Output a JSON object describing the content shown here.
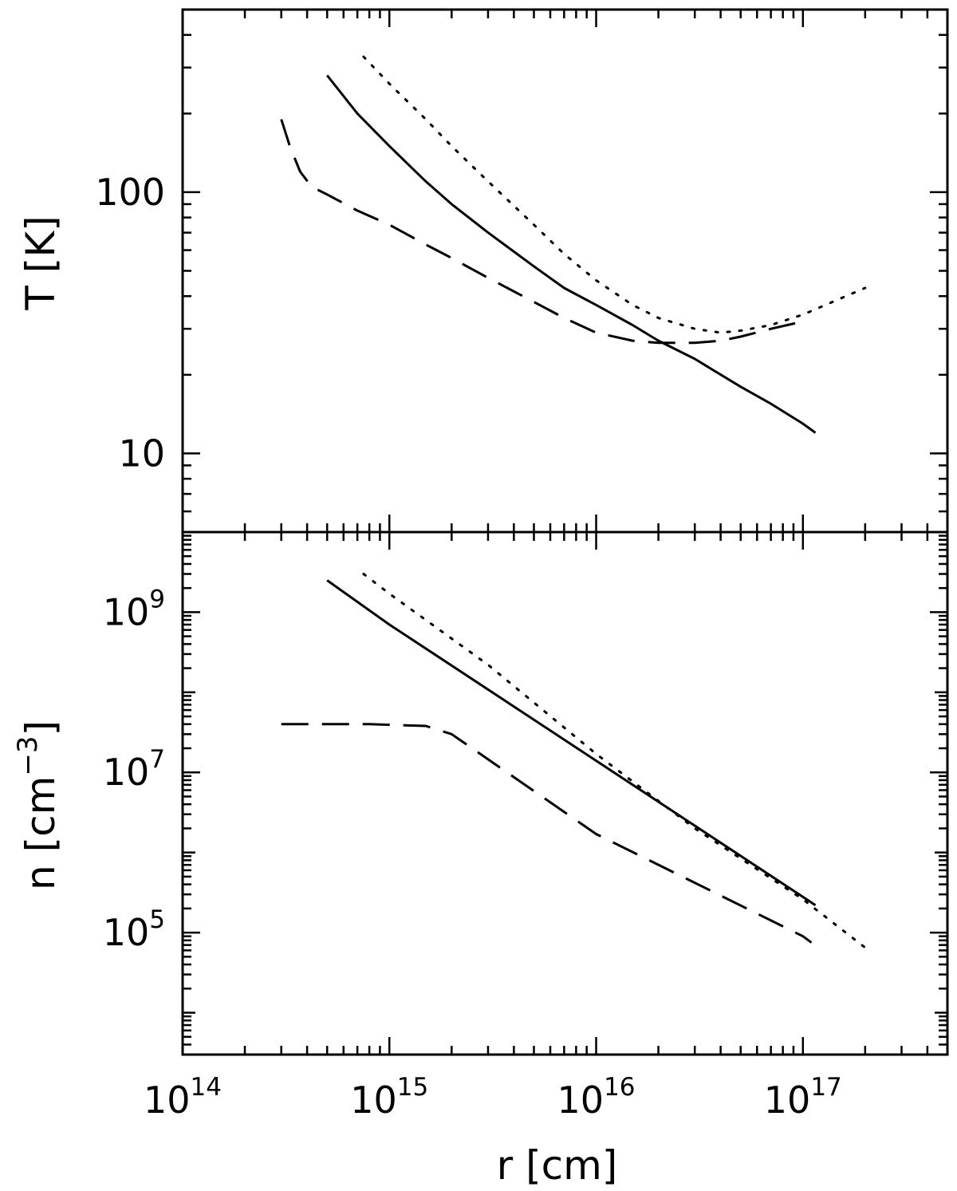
{
  "chart_data": [
    {
      "type": "line",
      "panel": "top",
      "xscale": "log",
      "yscale": "log",
      "xlim": [
        100000000000000.0,
        5e+17
      ],
      "ylim": [
        5,
        500
      ],
      "ylabel": "T [K]",
      "xlabel": "",
      "grid": false,
      "legend": "none",
      "yticks": [
        {
          "value": 10,
          "label": "10"
        },
        {
          "value": 100,
          "label": "100"
        }
      ],
      "series": [
        {
          "style": "solid",
          "points": [
            [
              500000000000000.0,
              280
            ],
            [
              700000000000000.0,
              200
            ],
            [
              1000000000000000.0,
              150
            ],
            [
              1500000000000000.0,
              110
            ],
            [
              2000000000000000.0,
              90
            ],
            [
              3000000000000000.0,
              70
            ],
            [
              5000000000000000.0,
              52
            ],
            [
              7000000000000000.0,
              43
            ],
            [
              1e+16,
              37
            ],
            [
              1.5e+16,
              31
            ],
            [
              2e+16,
              27
            ],
            [
              3e+16,
              23
            ],
            [
              5e+16,
              18
            ],
            [
              7e+16,
              15.5
            ],
            [
              1e+17,
              13
            ],
            [
              1.15e+17,
              12
            ]
          ]
        },
        {
          "style": "dotted",
          "points": [
            [
              750000000000000.0,
              330
            ],
            [
              1000000000000000.0,
              260
            ],
            [
              1500000000000000.0,
              190
            ],
            [
              2000000000000000.0,
              150
            ],
            [
              3000000000000000.0,
              110
            ],
            [
              5000000000000000.0,
              75
            ],
            [
              7000000000000000.0,
              58
            ],
            [
              1e+16,
              46
            ],
            [
              1.5e+16,
              37
            ],
            [
              2e+16,
              33
            ],
            [
              3e+16,
              30
            ],
            [
              4e+16,
              29
            ],
            [
              5e+16,
              29.5
            ],
            [
              7e+16,
              31
            ],
            [
              1e+17,
              34
            ],
            [
              1.5e+17,
              39
            ],
            [
              2e+17,
              43
            ]
          ]
        },
        {
          "style": "dashed",
          "points": [
            [
              300000000000000.0,
              190
            ],
            [
              330000000000000.0,
              150
            ],
            [
              370000000000000.0,
              120
            ],
            [
              420000000000000.0,
              105
            ],
            [
              500000000000000.0,
              98
            ],
            [
              700000000000000.0,
              85
            ],
            [
              1000000000000000.0,
              75
            ],
            [
              1500000000000000.0,
              63
            ],
            [
              2000000000000000.0,
              56
            ],
            [
              3000000000000000.0,
              47
            ],
            [
              5000000000000000.0,
              38
            ],
            [
              7000000000000000.0,
              33
            ],
            [
              1e+16,
              29
            ],
            [
              1.5e+16,
              27
            ],
            [
              2e+16,
              26.5
            ],
            [
              3e+16,
              26.5
            ],
            [
              4e+16,
              27
            ],
            [
              5e+16,
              28
            ],
            [
              7e+16,
              30
            ],
            [
              1e+17,
              32
            ]
          ]
        }
      ]
    },
    {
      "type": "line",
      "panel": "bottom",
      "xscale": "log",
      "yscale": "log",
      "xlim": [
        100000000000000.0,
        5e+17
      ],
      "ylim": [
        3000.0,
        10000000000.0
      ],
      "ylabel": "n [cm",
      "ylabel_sup": "−3",
      "ylabel_close": "]",
      "xlabel": "r [cm]",
      "grid": false,
      "legend": "none",
      "xticks": [
        {
          "value": 100000000000000.0,
          "base": "10",
          "exp": "14"
        },
        {
          "value": 1000000000000000.0,
          "base": "10",
          "exp": "15"
        },
        {
          "value": 1e+16,
          "base": "10",
          "exp": "16"
        },
        {
          "value": 1e+17,
          "base": "10",
          "exp": "17"
        }
      ],
      "yticks": [
        {
          "value": 100000.0,
          "base": "10",
          "exp": "5"
        },
        {
          "value": 10000000.0,
          "base": "10",
          "exp": "7"
        },
        {
          "value": 1000000000.0,
          "base": "10",
          "exp": "9"
        }
      ],
      "series": [
        {
          "style": "solid",
          "points": [
            [
              500000000000000.0,
              2500000000.0
            ],
            [
              1000000000000000.0,
              700000000.0
            ],
            [
              1e+16,
              14000000.0
            ],
            [
              1.15e+17,
              220000.0
            ]
          ]
        },
        {
          "style": "dotted",
          "points": [
            [
              750000000000000.0,
              3000000000.0
            ],
            [
              1000000000000000.0,
              1700000000.0
            ],
            [
              3000000000000000.0,
              220000000.0
            ],
            [
              1e+16,
              17000000.0
            ],
            [
              3e+16,
              2000000.0
            ],
            [
              1e+17,
              260000.0
            ],
            [
              2e+17,
              65000.0
            ]
          ]
        },
        {
          "style": "dashed",
          "points": [
            [
              300000000000000.0,
              40000000.0
            ],
            [
              800000000000000.0,
              40000000.0
            ],
            [
              1500000000000000.0,
              38000000.0
            ],
            [
              2000000000000000.0,
              30000000.0
            ],
            [
              1e+16,
              1700000.0
            ],
            [
              1e+17,
              90000.0
            ],
            [
              1.1e+17,
              75000.0
            ]
          ]
        }
      ]
    }
  ]
}
